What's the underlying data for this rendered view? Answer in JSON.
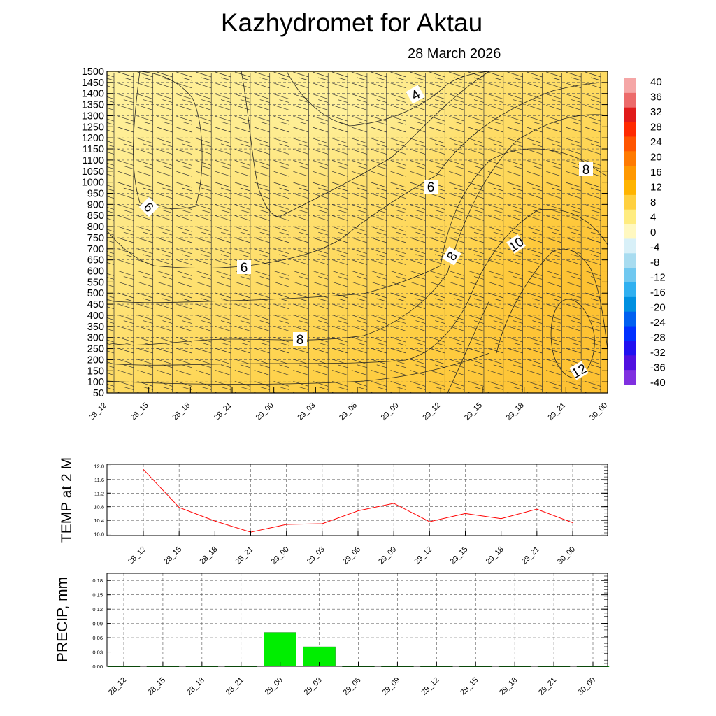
{
  "title": "Kazhydromet  for Aktau",
  "subtitle": "28 March 2026",
  "chart_data": [
    {
      "type": "heatmap",
      "name": "cross-section",
      "xlabel": "",
      "ylabel": "",
      "x_tick_labels": [
        "28_12",
        "28_15",
        "28_18",
        "28_21",
        "29_00",
        "29_03",
        "29_06",
        "29_09",
        "29_12",
        "29_15",
        "29_18",
        "29_21",
        "30_00"
      ],
      "y_tick_labels": [
        "1500",
        "1450",
        "1400",
        "1350",
        "1300",
        "1250",
        "1200",
        "1150",
        "1100",
        "1050",
        "1000",
        "950",
        "900",
        "850",
        "800",
        "750",
        "700",
        "650",
        "600",
        "550",
        "500",
        "450",
        "400",
        "350",
        "300",
        "250",
        "200",
        "150",
        "100",
        "50"
      ],
      "ylim": [
        50,
        1500
      ],
      "contour_labels": [
        "4",
        "6",
        "6",
        "6",
        "8",
        "8",
        "8",
        "10",
        "12"
      ],
      "colorbar": {
        "labels": [
          "40",
          "36",
          "32",
          "28",
          "24",
          "20",
          "16",
          "12",
          "8",
          "4",
          "0",
          "-4",
          "-8",
          "-12",
          "-16",
          "-20",
          "-24",
          "-28",
          "-32",
          "-36",
          "-40"
        ],
        "colors": [
          "#f5a6a6",
          "#ec6a6a",
          "#e01a1a",
          "#ff2a00",
          "#ff5500",
          "#ff7a00",
          "#ff9800",
          "#ffb400",
          "#ffd040",
          "#ffec80",
          "#fff8c0",
          "#d8f0f8",
          "#a8dcf0",
          "#70c8f0",
          "#30b0f0",
          "#0090e0",
          "#0060f0",
          "#0030ff",
          "#2010f0",
          "#5010e0",
          "#8030e0"
        ]
      },
      "field_colors": {
        "cool": "#fff3a2",
        "mid": "#fee47a",
        "warm": "#fecf44",
        "hot": "#fdc030"
      }
    },
    {
      "type": "line",
      "name": "temperature",
      "ylabel": "TEMP at 2 M",
      "x": [
        "28_12",
        "28_15",
        "28_18",
        "28_21",
        "29_00",
        "29_03",
        "29_06",
        "29_09",
        "29_12",
        "29_15",
        "29_18",
        "29_21",
        "30_00"
      ],
      "values": [
        11.9,
        10.78,
        10.38,
        10.05,
        10.28,
        10.3,
        10.68,
        10.9,
        10.36,
        10.6,
        10.45,
        10.73,
        10.33
      ],
      "y_ticks": [
        "12.0",
        "11.6",
        "11.2",
        "10.8",
        "10.4",
        "10.0"
      ],
      "ylim": [
        9.95,
        12.05
      ],
      "line_color": "#ff0000"
    },
    {
      "type": "bar",
      "name": "precipitation",
      "ylabel": "PRECIP, mm",
      "categories": [
        "28_12",
        "28_15",
        "28_18",
        "28_21",
        "29_00",
        "29_03",
        "29_06",
        "29_09",
        "29_12",
        "29_15",
        "29_18",
        "29_21",
        "30_00"
      ],
      "values": [
        0,
        0,
        0,
        0,
        0.071,
        0.041,
        0,
        0,
        0,
        0,
        0,
        0,
        0
      ],
      "y_ticks": [
        "0.18",
        "0.15",
        "0.12",
        "0.09",
        "0.06",
        "0.03",
        "0.00"
      ],
      "ylim": [
        0,
        0.195
      ],
      "bar_color": "#00ee00"
    }
  ]
}
